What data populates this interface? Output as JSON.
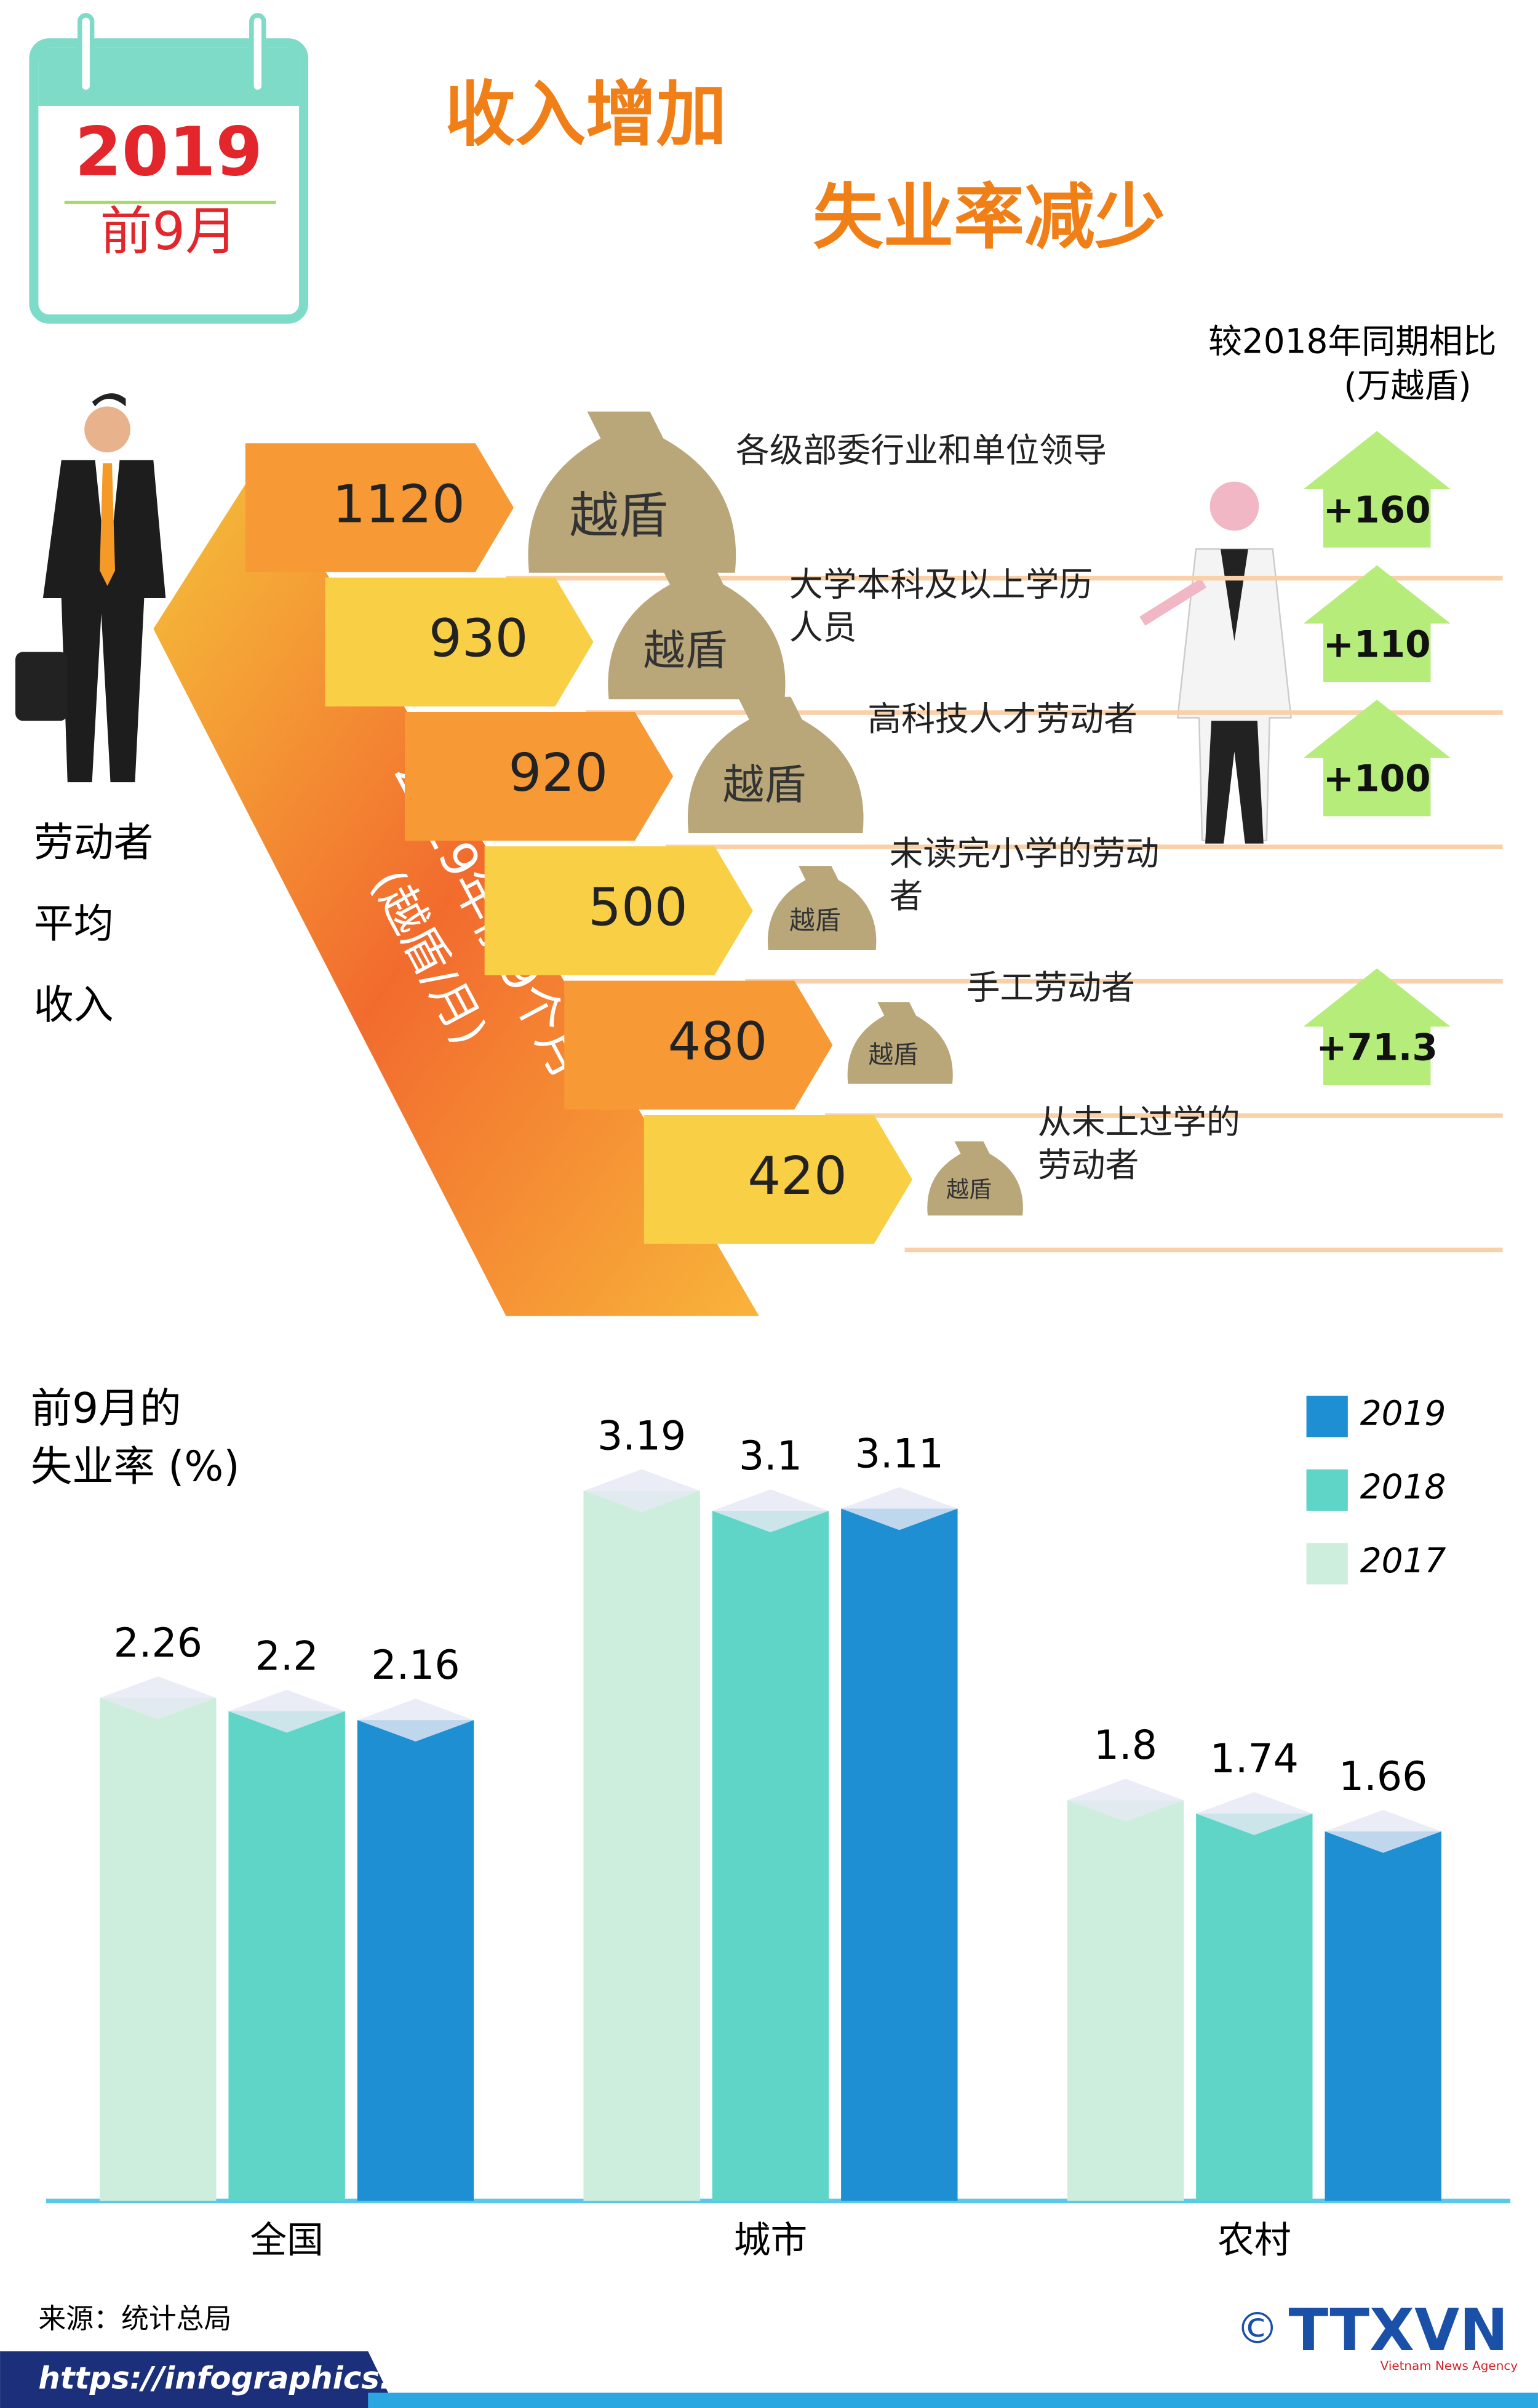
{
  "header": {
    "calendar_year": "2019",
    "calendar_period": "前9月",
    "title_line1": "收入增加",
    "title_line2": "失业率减少"
  },
  "chart_data": [
    {
      "type": "ribbon",
      "title_lines": [
        "劳动者",
        "平均",
        "收入"
      ],
      "ribbon_label": "2019年前9个月",
      "ribbon_unit": "(越盾/月)",
      "bag_label": "越盾",
      "change_title": "较2018年同期相比",
      "change_unit": "(万越盾)",
      "categories": [
        [
          "各级部委行业和单位领导"
        ],
        [
          "大学本科及以上学历",
          "人员"
        ],
        [
          "高科技人才劳动者"
        ],
        [
          "未读完小学的劳动",
          "者"
        ],
        [
          "手工劳动者"
        ],
        [
          "从未上过学的",
          "劳动者"
        ]
      ],
      "values": [
        1120,
        930,
        920,
        500,
        480,
        420
      ],
      "colors": [
        "#f79a35",
        "#f9cf45"
      ],
      "changes": [
        160,
        110,
        100,
        null,
        71.3,
        null
      ],
      "change_labels": [
        "+160",
        "+110",
        "+100",
        null,
        "+71.3",
        null
      ],
      "change_color": "#b5ec7a"
    },
    {
      "type": "bar",
      "title_lines": [
        "前9月的",
        "失业率 (%)"
      ],
      "categories": [
        "全国",
        "城市",
        "农村"
      ],
      "series": [
        {
          "name": "2017",
          "color": "#cdeedd",
          "values": [
            2.26,
            3.19,
            1.8
          ]
        },
        {
          "name": "2018",
          "color": "#5fd5c8",
          "values": [
            2.2,
            3.1,
            1.74
          ]
        },
        {
          "name": "2019",
          "color": "#1e8fd2",
          "values": [
            2.16,
            3.11,
            1.66
          ]
        }
      ],
      "ylim": [
        0,
        3.5
      ],
      "legend": "upper right"
    }
  ],
  "footer": {
    "source": "来源：统计总局",
    "url": "https://infographics.vn",
    "copyright": "©",
    "logo": "TTXVN",
    "agency": "Vietnam News Agency"
  }
}
